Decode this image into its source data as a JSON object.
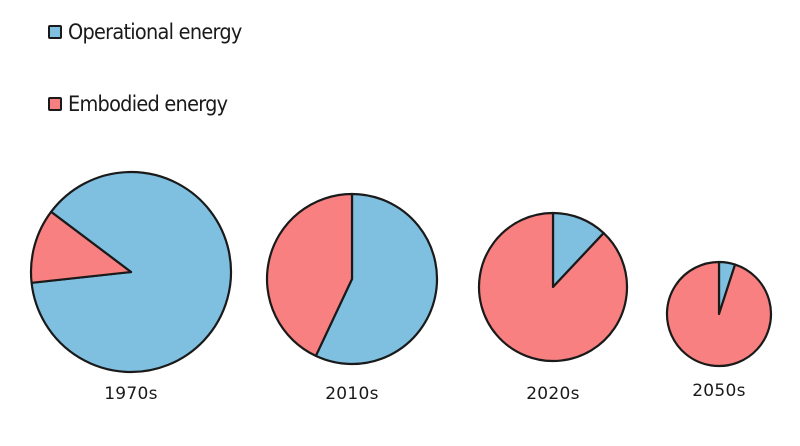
{
  "legend": [
    {
      "label": "Operational energy",
      "color": "#7fbfe0"
    },
    {
      "label": "Embodied energy",
      "color": "#f88080"
    }
  ],
  "chart_data": {
    "type": "pie",
    "title": "",
    "series_names": [
      "Operational energy",
      "Embodied energy"
    ],
    "colors": {
      "Operational energy": "#7fbfe0",
      "Embodied energy": "#f88080"
    },
    "pies": [
      {
        "label": "1970s",
        "values": {
          "Operational energy": 88,
          "Embodied energy": 12
        },
        "relative_size": 1.0
      },
      {
        "label": "2010s",
        "values": {
          "Operational energy": 57,
          "Embodied energy": 43
        },
        "relative_size": 0.85
      },
      {
        "label": "2020s",
        "values": {
          "Operational energy": 12,
          "Embodied energy": 88
        },
        "relative_size": 0.74
      },
      {
        "label": "2050s",
        "values": {
          "Operational energy": 5,
          "Embodied energy": 95
        },
        "relative_size": 0.52
      }
    ]
  }
}
